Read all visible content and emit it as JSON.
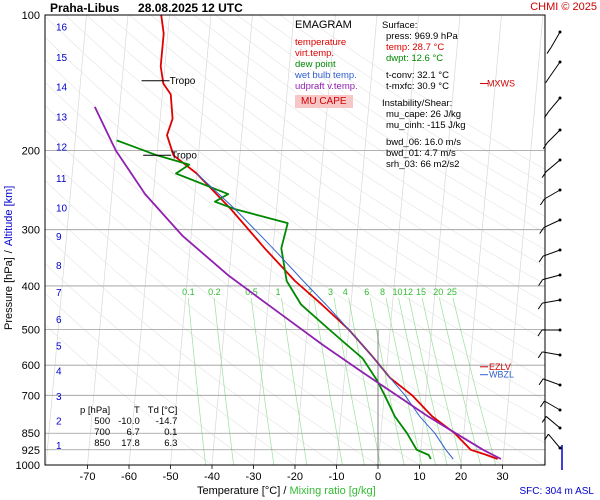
{
  "header": {
    "station": "Praha-Libus",
    "datetime": "28.08.2025 12 UTC",
    "credit": "CHMI © 2025"
  },
  "legend": {
    "title": "EMAGRAM",
    "items": [
      {
        "label": "temperature",
        "color": "#e00000"
      },
      {
        "label": "virt.temp.",
        "color": "#e00000"
      },
      {
        "label": "dew point",
        "color": "#008800"
      },
      {
        "label": "wet bulb temp.",
        "color": "#3060d0"
      },
      {
        "label": "udpraft v.temp.",
        "color": "#9020b0"
      }
    ],
    "mu_cape_badge": "MU CAPE"
  },
  "surface": {
    "title": "Surface:",
    "press": "press: 969.9 hPa",
    "temp": "temp: 28.7 °C",
    "dwpt": "dwpt: 12.6 °C",
    "tconv": "t-conv: 32.1 °C",
    "tmxfc": "t-mxfc: 30.9 °C"
  },
  "instability": {
    "title": "Instability/Shear:",
    "mu_cape": "mu_cape: 26 J/kg",
    "mu_cinh": "mu_cinh: -115 J/kg",
    "bwd_06": "bwd_06: 16.0 m/s",
    "bwd_01": "bwd_01: 4.7 m/s",
    "srh_03": "srh_03: 66 m2/s2"
  },
  "level_table": {
    "headers": [
      "p [hPa]",
      "T",
      "Td [°C]"
    ],
    "rows": [
      [
        "500",
        "-10.0",
        "-14.7"
      ],
      [
        "700",
        "6.7",
        "0.1"
      ],
      [
        "850",
        "17.8",
        "6.3"
      ]
    ]
  },
  "xlabel": {
    "temp": "Temperature [°C]",
    "sep": "/",
    "mix": "Mixing ratio [g/kg]"
  },
  "ylabel": {
    "press": "Pressure [hPa]",
    "sep": "/",
    "alt": "Altitude [km]"
  },
  "sfc_label": "SFC: 304 m ASL",
  "chart_data": {
    "type": "line",
    "xlim": [
      -80,
      30
    ],
    "ylim_hpa": [
      1000,
      100
    ],
    "log_pressure": true,
    "grid": true,
    "pressure_ticks": [
      100,
      200,
      300,
      400,
      500,
      600,
      700,
      850,
      925,
      1000
    ],
    "temp_ticks": [
      -70,
      -60,
      -50,
      -40,
      -30,
      -20,
      -10,
      0,
      10,
      20,
      30
    ],
    "altitude_ticks": [
      {
        "km": "1",
        "p": 902
      },
      {
        "km": "2",
        "p": 797
      },
      {
        "km": "3",
        "p": 702
      },
      {
        "km": "4",
        "p": 617
      },
      {
        "km": "5",
        "p": 542
      },
      {
        "km": "6",
        "p": 474
      },
      {
        "km": "7",
        "p": 413
      },
      {
        "km": "8",
        "p": 359
      },
      {
        "km": "9",
        "p": 310
      },
      {
        "km": "10",
        "p": 268
      },
      {
        "km": "11",
        "p": 230
      },
      {
        "km": "12",
        "p": 196
      },
      {
        "km": "13",
        "p": 168
      },
      {
        "km": "14",
        "p": 144
      },
      {
        "km": "15",
        "p": 124
      },
      {
        "km": "16",
        "p": 106
      }
    ],
    "mixing_ratio_labels": [
      "0.1",
      "0.2",
      "0.5",
      "1",
      "2",
      "3",
      "4",
      "6",
      "8",
      "10",
      "12",
      "15",
      "20",
      "25"
    ],
    "mixing_ratio_p": 425,
    "series": [
      {
        "name": "temperature",
        "color": "#e00000",
        "x": [
          28.7,
          26,
          22,
          17.8,
          12,
          6.7,
          1,
          -4,
          -10,
          -17,
          -24,
          -32,
          -41,
          -50,
          -56,
          -58,
          -57,
          -58,
          -60,
          -61,
          -61,
          -62
        ],
        "p": [
          969.9,
          950,
          925,
          850,
          780,
          700,
          640,
          570,
          500,
          440,
          390,
          330,
          270,
          225,
          205,
          185,
          170,
          150,
          142,
          130,
          110,
          100
        ]
      },
      {
        "name": "dew point",
        "color": "#008800",
        "x": [
          12.6,
          12,
          9,
          6.3,
          3,
          0.1,
          -2,
          -6,
          -14.7,
          -22,
          -26,
          -28,
          -27,
          -40,
          -45,
          -42,
          -55,
          -52,
          -60,
          -70
        ],
        "p": [
          969.9,
          950,
          925,
          850,
          780,
          700,
          650,
          580,
          500,
          440,
          390,
          330,
          290,
          270,
          260,
          250,
          225,
          215,
          205,
          190
        ]
      },
      {
        "name": "wet bulb temp.",
        "color": "#3060d0",
        "x": [
          18,
          16,
          13,
          9,
          5,
          1,
          -4,
          -10,
          -16,
          -22,
          -30,
          -40,
          -50
        ],
        "p": [
          969.9,
          925,
          850,
          780,
          700,
          640,
          570,
          500,
          440,
          390,
          330,
          270,
          225
        ]
      },
      {
        "name": "udpraft v.temp.",
        "color": "#9020b0",
        "x": [
          29.5,
          25,
          18,
          11,
          3,
          -6,
          -16,
          -27,
          -40,
          -52,
          -62,
          -70,
          -76
        ],
        "p": [
          969.9,
          925,
          850,
          780,
          700,
          620,
          540,
          460,
          380,
          310,
          250,
          200,
          160
        ]
      }
    ],
    "annotations": [
      {
        "text": "Tropo",
        "p": 140,
        "t": -60
      },
      {
        "text": "Tropo",
        "p": 205,
        "t": -58
      },
      {
        "text": "EZLV",
        "p": 605,
        "side": "right"
      },
      {
        "text": "WBZL",
        "p": 630,
        "side": "right"
      },
      {
        "text": "MXWS",
        "p": 142,
        "side": "right"
      }
    ]
  }
}
